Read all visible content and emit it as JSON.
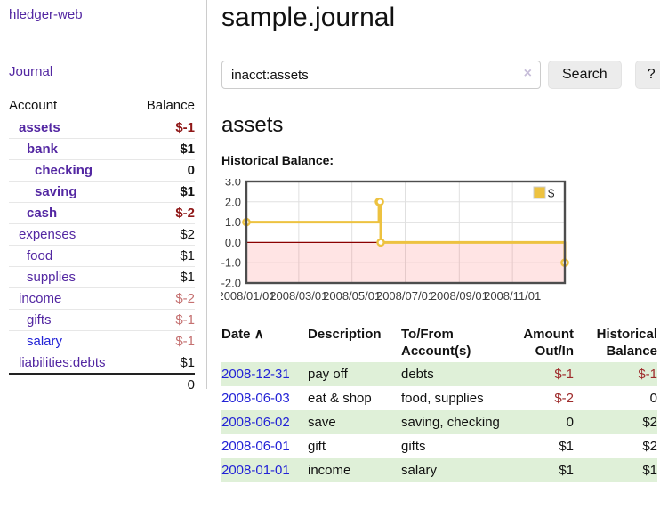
{
  "app": {
    "brand": "hledger-web",
    "nav_journal": "Journal"
  },
  "sidebar": {
    "account_header": "Account",
    "balance_header": "Balance",
    "accounts": [
      {
        "name": "assets",
        "balance": "$-1",
        "level": 1,
        "bold": true,
        "name_color": "purple",
        "balance_color": "dark-red"
      },
      {
        "name": "bank",
        "balance": "$1",
        "level": 2,
        "bold": true,
        "name_color": "purple",
        "balance_color": "black"
      },
      {
        "name": "checking",
        "balance": "0",
        "level": 3,
        "bold": true,
        "name_color": "purple",
        "balance_color": "black"
      },
      {
        "name": "saving",
        "balance": "$1",
        "level": 3,
        "bold": true,
        "name_color": "purple",
        "balance_color": "black"
      },
      {
        "name": "cash",
        "balance": "$-2",
        "level": 2,
        "bold": true,
        "name_color": "purple",
        "balance_color": "dark-red"
      },
      {
        "name": "expenses",
        "balance": "$2",
        "level": 1,
        "bold": false,
        "name_color": "purple",
        "balance_color": "black"
      },
      {
        "name": "food",
        "balance": "$1",
        "level": 2,
        "bold": false,
        "name_color": "purple",
        "balance_color": "black"
      },
      {
        "name": "supplies",
        "balance": "$1",
        "level": 2,
        "bold": false,
        "name_color": "purple",
        "balance_color": "black"
      },
      {
        "name": "income",
        "balance": "$-2",
        "level": 1,
        "bold": false,
        "name_color": "purple",
        "balance_color": "light-red"
      },
      {
        "name": "gifts",
        "balance": "$-1",
        "level": 2,
        "bold": false,
        "name_color": "purple",
        "balance_color": "light-red"
      },
      {
        "name": "salary",
        "balance": "$-1",
        "level": 2,
        "bold": false,
        "name_color": "blue",
        "balance_color": "light-red"
      },
      {
        "name": "liabilities:debts",
        "balance": "$1",
        "level": 1,
        "bold": false,
        "name_color": "purple",
        "balance_color": "black"
      }
    ],
    "total": "0"
  },
  "main": {
    "title": "sample.journal",
    "search": {
      "value": "inacct:assets",
      "clear_icon": "×",
      "button_label": "Search",
      "help_label": "?"
    },
    "account_heading": "assets",
    "chart_label": "Historical Balance:"
  },
  "chart_data": {
    "type": "line",
    "title": "Historical Balance:",
    "series": [
      {
        "name": "$",
        "color": "#edc240",
        "step": true,
        "points": [
          [
            "2008-01-01",
            1
          ],
          [
            "2008-06-01",
            2
          ],
          [
            "2008-06-02",
            2
          ],
          [
            "2008-06-03",
            0
          ],
          [
            "2008-12-31",
            -1
          ]
        ]
      }
    ],
    "x_ticks": [
      "2008/01/01",
      "2008/03/01",
      "2008/05/01",
      "2008/07/01",
      "2008/09/01",
      "2008/11/01"
    ],
    "y_ticks": [
      "3.0",
      "2.0",
      "1.0",
      "0.0",
      "-1.0",
      "-2.0"
    ],
    "xlim": [
      "2008-01-01",
      "2008-12-31"
    ],
    "ylim": [
      -2,
      3
    ],
    "grid": true,
    "legend": {
      "label": "$",
      "position": "top-right"
    },
    "colors": {
      "line": "#edc240",
      "marker_fill": "#ffffff",
      "negative_region": "rgba(255,90,90,0.16)",
      "zero_line": "#8b0000",
      "gridline": "#e0e0e0",
      "plot_border": "#4d4d4d",
      "tick_text": "#3c3c3c"
    }
  },
  "register": {
    "headers": [
      "Date",
      "Description",
      "To/From\nAccount(s)",
      "Amount\nOut/In",
      "Historical\nBalance"
    ],
    "sort_icon": "∧",
    "rows": [
      {
        "date": "2008-12-31",
        "description": "pay off",
        "accounts": [
          "debts"
        ],
        "amount": "$-1",
        "amount_neg": true,
        "balance": "$-1",
        "balance_neg": true
      },
      {
        "date": "2008-06-03",
        "description": "eat & shop",
        "accounts": [
          "food",
          "supplies"
        ],
        "amount": "$-2",
        "amount_neg": true,
        "balance": "0",
        "balance_neg": false
      },
      {
        "date": "2008-06-02",
        "description": "save",
        "accounts": [
          "saving",
          "checking"
        ],
        "amount": "0",
        "amount_neg": false,
        "balance": "$2",
        "balance_neg": false
      },
      {
        "date": "2008-06-01",
        "description": "gift",
        "accounts": [
          "gifts"
        ],
        "amount": "$1",
        "amount_neg": false,
        "balance": "$2",
        "balance_neg": false
      },
      {
        "date": "2008-01-01",
        "description": "income",
        "accounts": [
          "salary"
        ],
        "amount": "$1",
        "amount_neg": false,
        "balance": "$1",
        "balance_neg": false
      }
    ]
  }
}
